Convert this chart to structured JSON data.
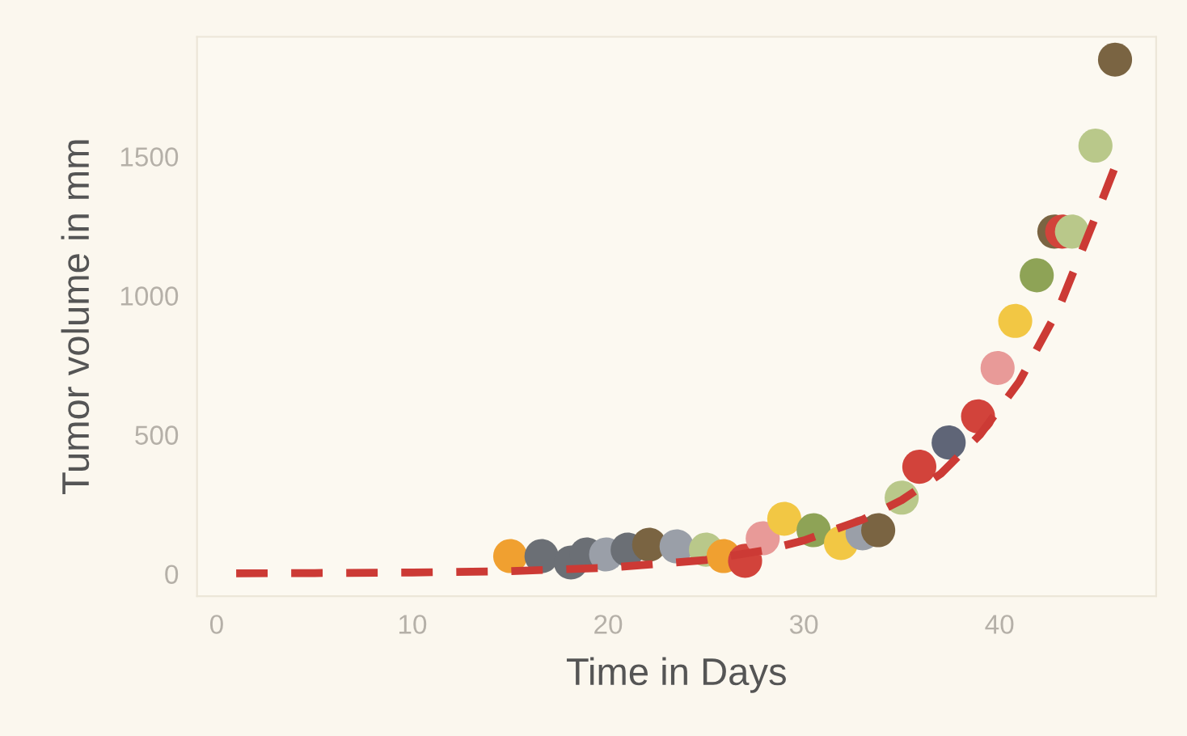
{
  "chart_data": {
    "type": "scatter",
    "xlabel": "Time in Days",
    "ylabel": "Tumor volume in mm",
    "xlim": [
      -1,
      48
    ],
    "ylim": [
      -80,
      1930
    ],
    "xticks": [
      0,
      10,
      20,
      30,
      40
    ],
    "yticks": [
      0,
      500,
      1000,
      1500
    ],
    "grid": false,
    "series": [
      {
        "type": "line",
        "color": "#cc3a35",
        "line_style": "dashed",
        "marker": "none",
        "x": [
          1,
          5,
          10,
          15,
          20,
          25,
          28,
          30,
          33,
          35,
          37,
          39,
          41,
          43,
          45,
          46
        ],
        "values": [
          2,
          3,
          5,
          10,
          22,
          50,
          85,
          120,
          195,
          265,
          360,
          500,
          690,
          950,
          1300,
          1480
        ]
      },
      {
        "marker": "circle",
        "x": [
          15,
          16.6,
          18.1,
          18.9,
          19.9,
          21.0,
          22.1,
          23.5,
          25.0,
          25.9,
          27.0,
          27.9,
          29.0,
          30.5,
          31.9,
          33.0,
          33.8,
          35.0,
          35.9,
          37.4,
          38.9,
          39.9,
          40.8,
          41.9,
          42.8,
          43.2,
          43.7,
          44.9,
          45.9
        ],
        "values": [
          64,
          64,
          41,
          70,
          70,
          87,
          105,
          99,
          87,
          64,
          47,
          128,
          198,
          157,
          111,
          146,
          157,
          274,
          385,
          472,
          566,
          740,
          909,
          1073,
          1230,
          1230,
          1230,
          1539,
          1848
        ],
        "colors": [
          "#f0a030",
          "#6b6f75",
          "#6b6f75",
          "#6b6f75",
          "#9a9fa8",
          "#6b6f75",
          "#7a6442",
          "#9a9fa8",
          "#b9c88a",
          "#f0a030",
          "#d2433b",
          "#e89a98",
          "#f2c744",
          "#8ea356",
          "#f2c744",
          "#9a9fa8",
          "#7a6442",
          "#b9c88a",
          "#d2433b",
          "#5f6577",
          "#d2433b",
          "#e89a98",
          "#f2c744",
          "#8ea356",
          "#7a6442",
          "#d2433b",
          "#b9c88a",
          "#b9c88a",
          "#7a6442"
        ]
      }
    ]
  }
}
